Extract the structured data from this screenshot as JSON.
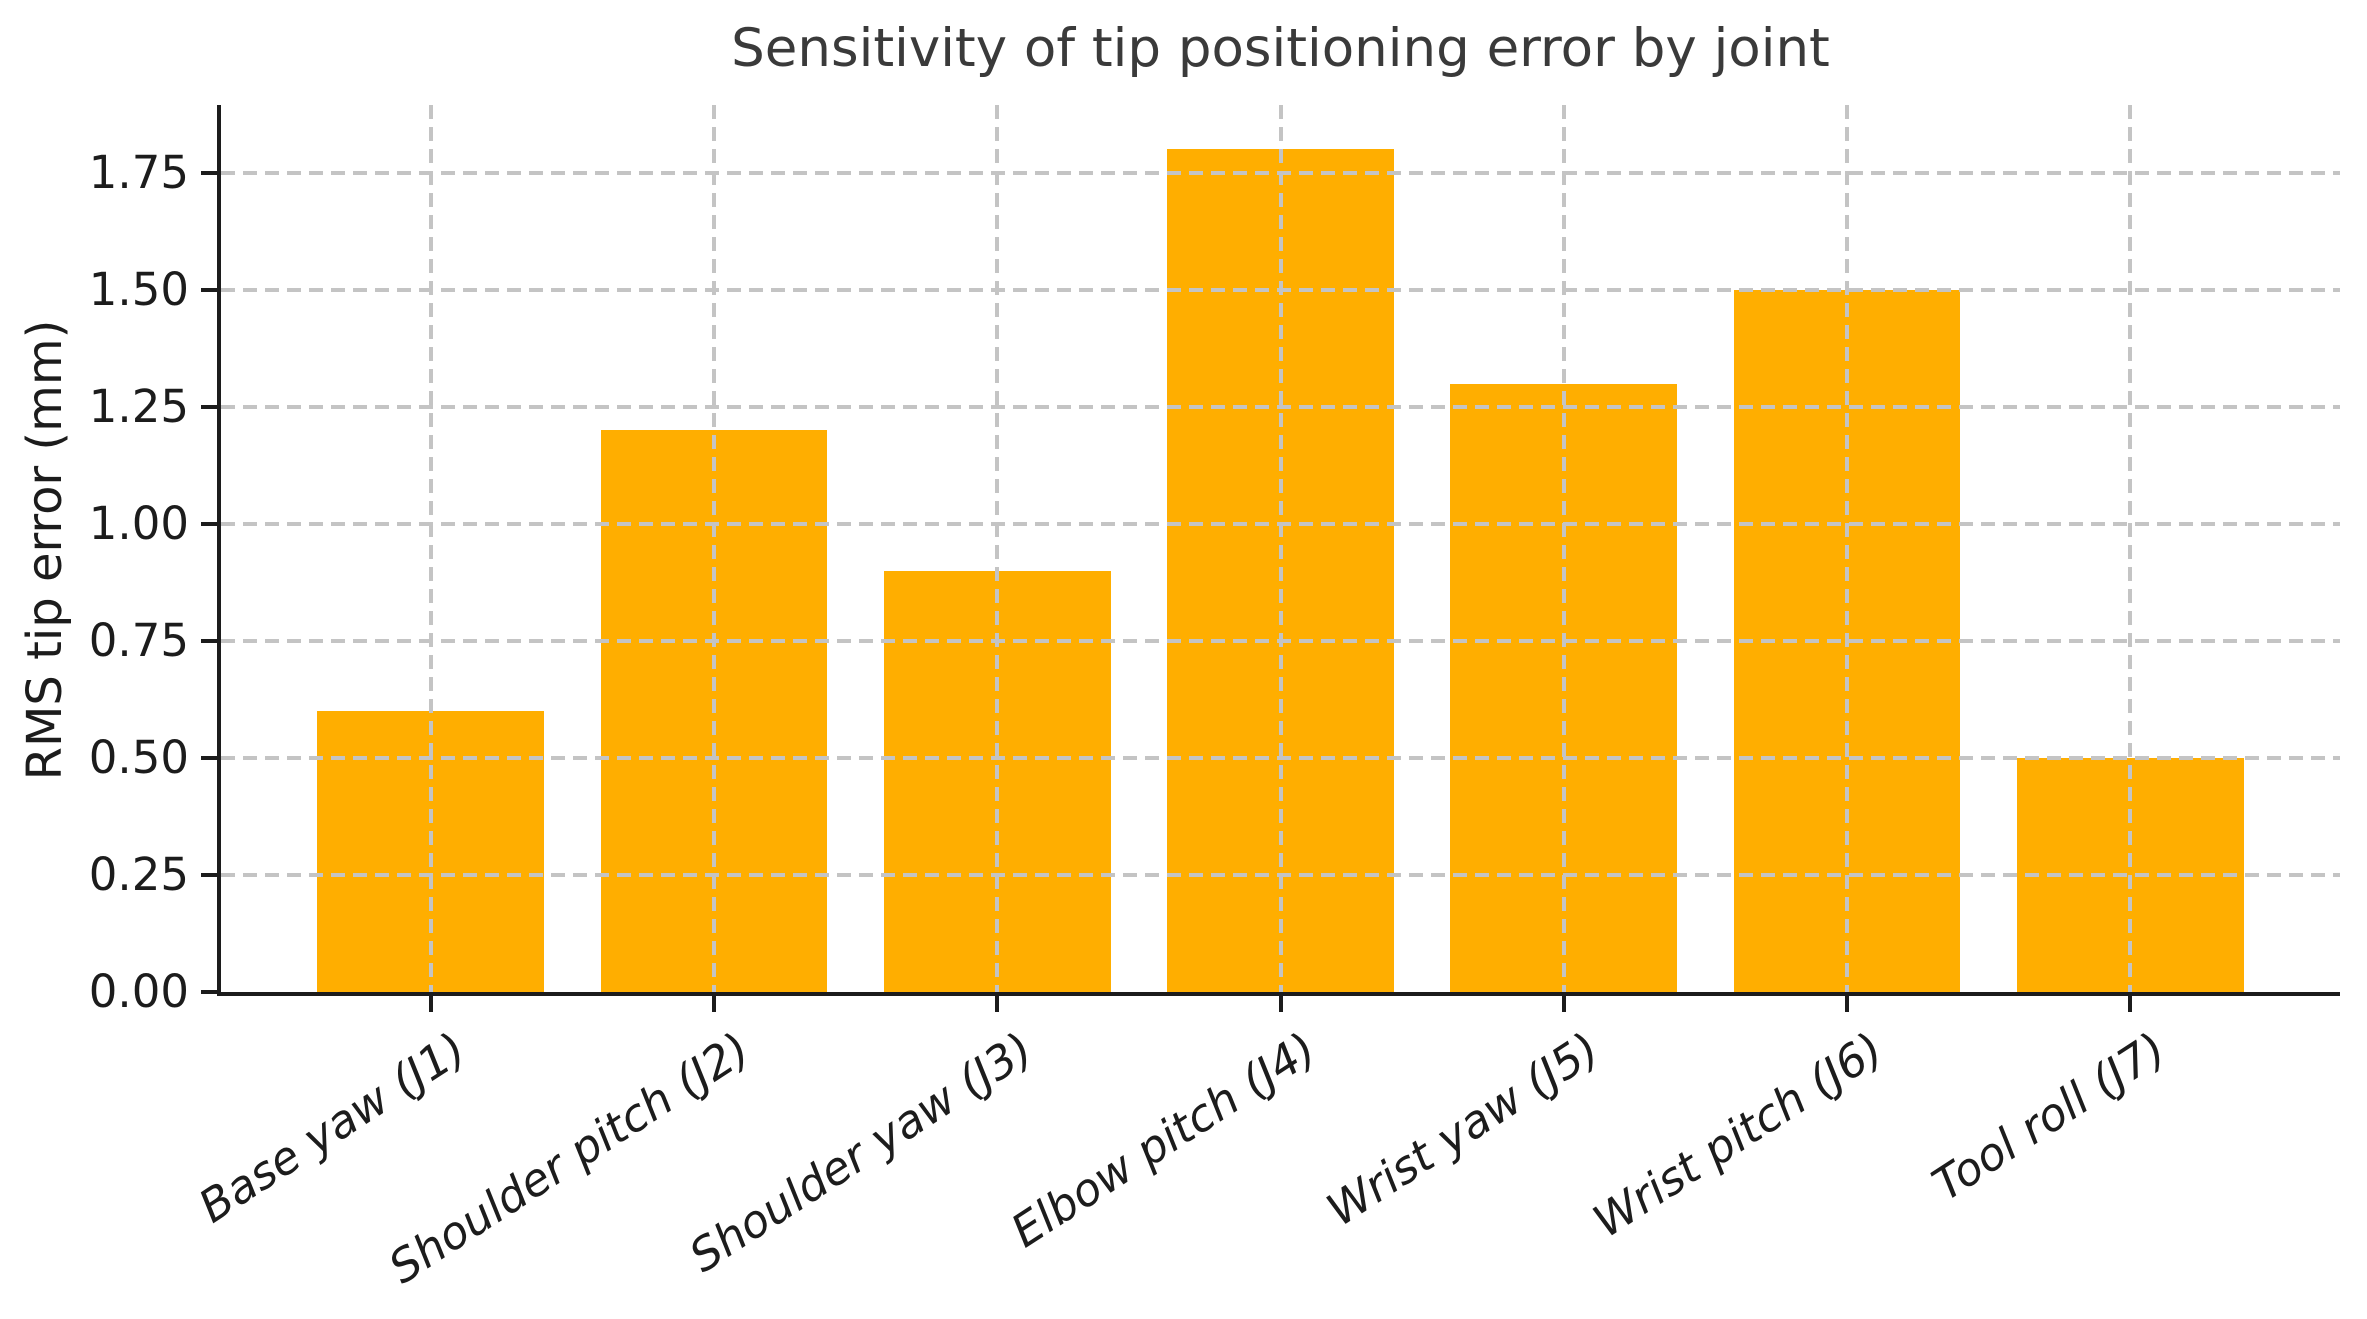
{
  "chart_data": {
    "type": "bar",
    "title": "Sensitivity of tip positioning error by joint",
    "xlabel": "",
    "ylabel": "RMS tip error (mm)",
    "categories": [
      "Base yaw (J1)",
      "Shoulder pitch (J2)",
      "Shoulder yaw (J3)",
      "Elbow pitch (J4)",
      "Wrist yaw (J5)",
      "Wrist pitch (J6)",
      "Tool roll (J7)"
    ],
    "values": [
      0.6,
      1.2,
      0.9,
      1.8,
      1.3,
      1.5,
      0.5
    ],
    "ylim": [
      0,
      1.895
    ],
    "yticks": [
      0.0,
      0.25,
      0.5,
      0.75,
      1.0,
      1.25,
      1.5,
      1.75
    ],
    "ytick_labels": [
      "0.00",
      "0.25",
      "0.50",
      "0.75",
      "1.00",
      "1.25",
      "1.50",
      "1.75"
    ],
    "legend": "none",
    "grid": "dashed gridlines on both axes, drawn over bars",
    "bar_width_fraction": 0.8,
    "xtick_label_rotation_deg": 33,
    "xtick_label_style": "italic",
    "colors": {
      "bar": "#ffae00",
      "grid": "#c4c4c4",
      "axis": "#1c1c1c",
      "tick_text": "#1c1c1c",
      "title_text": "#3a3a3a",
      "background": "#ffffff"
    }
  }
}
